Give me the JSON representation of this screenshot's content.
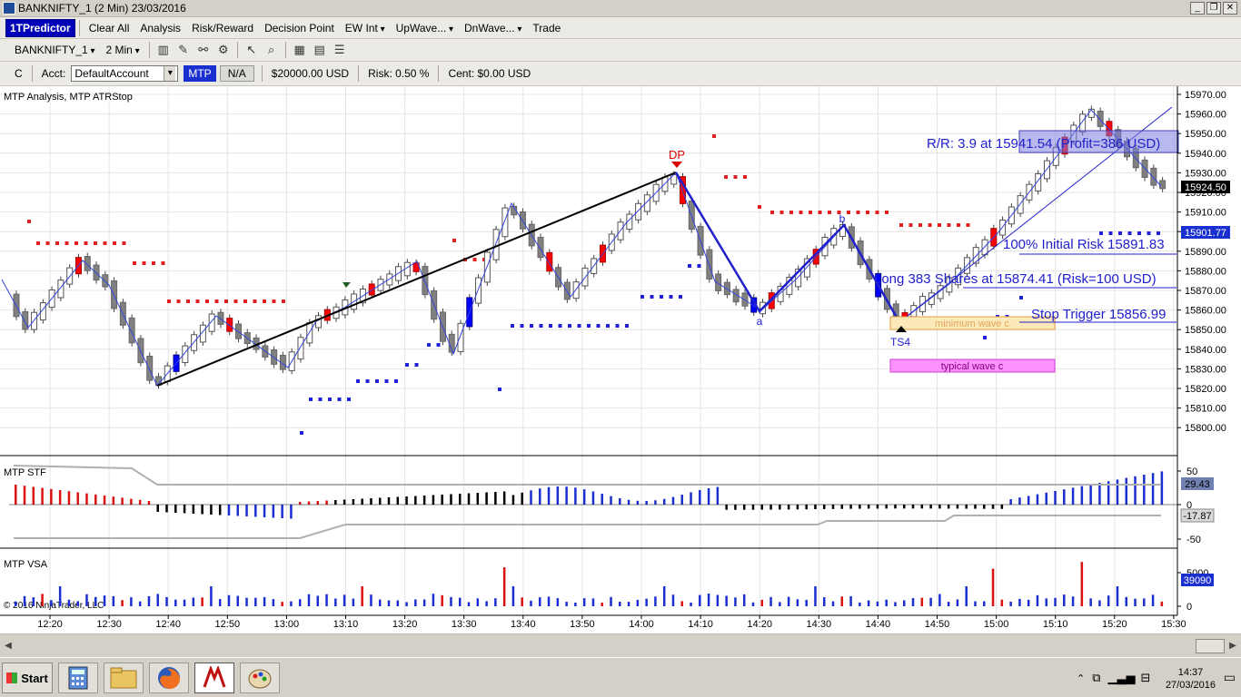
{
  "window": {
    "title": "BANKNIFTY_1 (2 Min)  23/03/2016"
  },
  "menu": {
    "brand": "1TPredictor",
    "items": [
      "Clear All",
      "Analysis",
      "Risk/Reward",
      "Decision Point",
      "EW Int",
      "UpWave...",
      "DnWave...",
      "Trade"
    ]
  },
  "toolbar": {
    "instrument": "BANKNIFTY_1",
    "interval": "2 Min"
  },
  "acct": {
    "c_label": "C",
    "acct_label": "Acct:",
    "account": "DefaultAccount",
    "mtp": "MTP",
    "na": "N/A",
    "balance": "$20000.00  USD",
    "risk": "Risk:  0.50 %",
    "cent": "Cent:  $0.00  USD"
  },
  "panels": {
    "main": "MTP Analysis, MTP ATRStop",
    "stf": "MTP STF",
    "vsa": "MTP VSA",
    "copyright": "© 2016 NinjaTrader, LLC"
  },
  "price_axis": {
    "ticks": [
      "15970.00",
      "15960.00",
      "15950.00",
      "15940.00",
      "15930.00",
      "15920.00",
      "15910.00",
      "15900.00",
      "15890.00",
      "15880.00",
      "15870.00",
      "15860.00",
      "15850.00",
      "15840.00",
      "15830.00",
      "15820.00",
      "15810.00",
      "15800.00"
    ],
    "last_price": "15924.50",
    "marker_price": "15901.77"
  },
  "stf_axis": {
    "ticks": [
      "50",
      "0",
      "-50"
    ],
    "value_high": "29.43",
    "value_low": "-17.87"
  },
  "vsa_axis": {
    "ticks": [
      "5000",
      "0"
    ],
    "value": "39090"
  },
  "time_axis": [
    "12:20",
    "12:30",
    "12:40",
    "12:50",
    "13:00",
    "13:10",
    "13:20",
    "13:30",
    "13:40",
    "13:50",
    "14:00",
    "14:10",
    "14:20",
    "14:30",
    "14:40",
    "14:50",
    "15:00",
    "15:10",
    "15:20",
    "15:30"
  ],
  "annotations": {
    "dp": "DP",
    "wave_a": "a",
    "wave_b": "b",
    "ts4": "TS4",
    "rr": "R/R: 3.9 at 15941.54 (Profit=386 USD)",
    "initial_risk": "100% Initial Risk 15891.83",
    "long": "Long 383 Shares at 15874.41 (Risk=100 USD)",
    "stop": "Stop Trigger 15856.99",
    "min_wave": "minimum wave c",
    "typical_wave": "typical wave c"
  },
  "colors": {
    "bull": "#ffffff",
    "bear": "#808080",
    "bull_signal": "#ff0000",
    "bear_signal": "#0000ff",
    "accent": "#0000cc"
  },
  "taskbar": {
    "start": "Start",
    "time": "14:37",
    "date": "27/03/2016"
  }
}
